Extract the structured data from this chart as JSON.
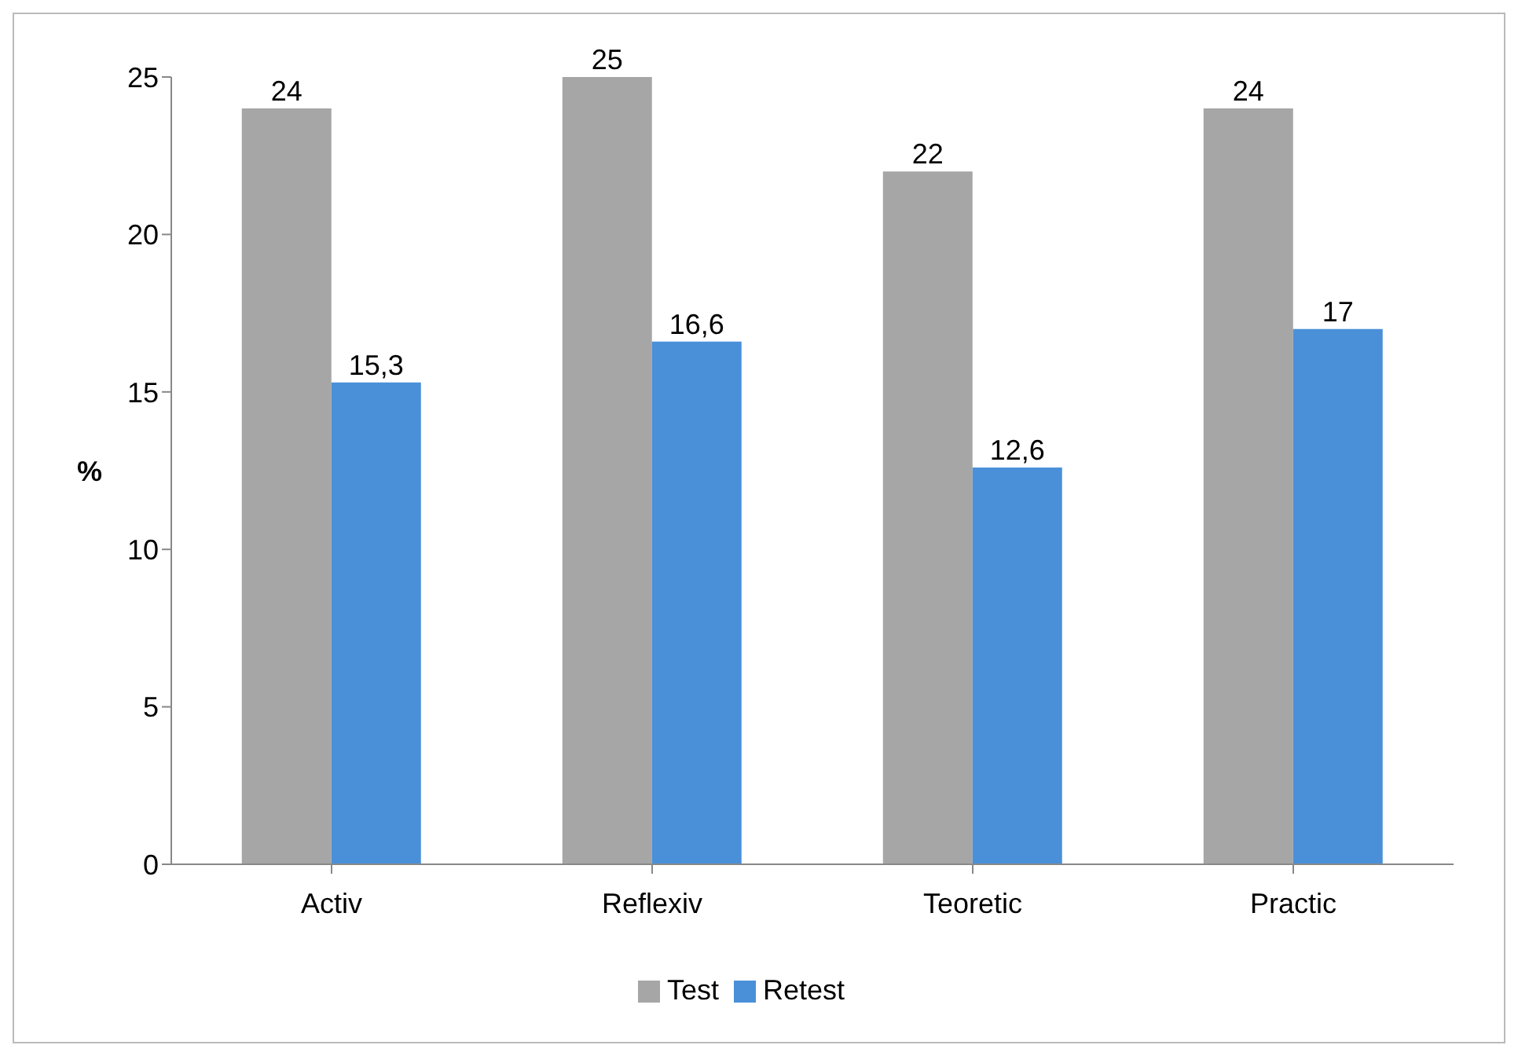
{
  "chart_data": {
    "type": "bar",
    "categories": [
      "Activ",
      "Reflexiv",
      "Teoretic",
      "Practic"
    ],
    "ylabel": "%",
    "series": [
      {
        "name": "Test",
        "color": "#a6a6a6",
        "values": [
          24,
          25,
          22,
          24
        ],
        "value_labels": [
          "24",
          "25",
          "22",
          "24"
        ]
      },
      {
        "name": "Retest",
        "color": "#4a90d9",
        "values": [
          15.3,
          16.6,
          12.6,
          17
        ],
        "value_labels": [
          "15,3",
          "16,6",
          "12,6",
          "17"
        ]
      }
    ],
    "ylim": [
      0,
      25
    ],
    "yticks": [
      0,
      5,
      10,
      15,
      20,
      25
    ],
    "grid": false,
    "legend": "bottom"
  }
}
